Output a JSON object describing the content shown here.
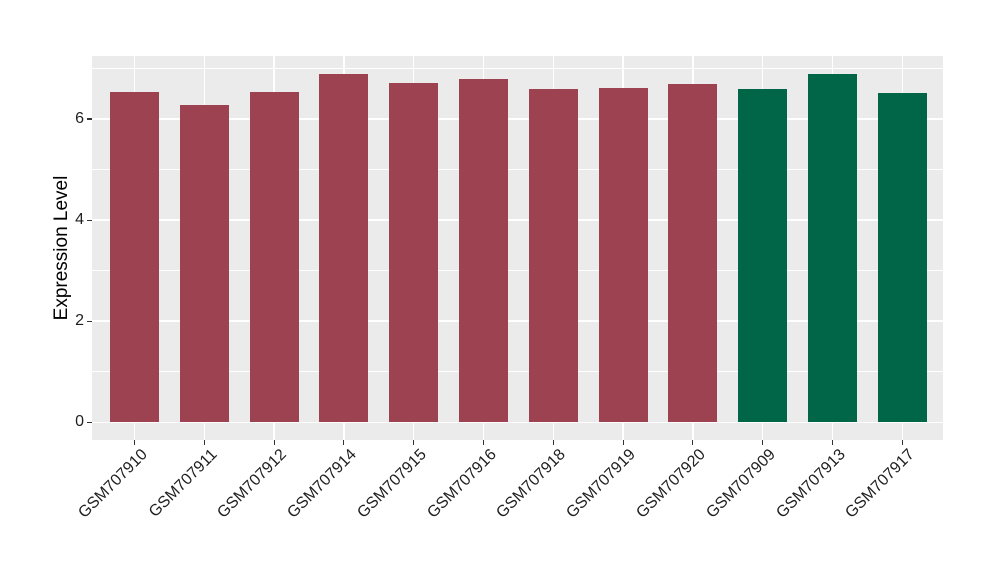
{
  "chart_data": {
    "type": "bar",
    "title": "",
    "xlabel": "",
    "ylabel": "Expression Level",
    "categories": [
      "GSM707910",
      "GSM707911",
      "GSM707912",
      "GSM707914",
      "GSM707915",
      "GSM707916",
      "GSM707918",
      "GSM707919",
      "GSM707920",
      "GSM707909",
      "GSM707913",
      "GSM707917"
    ],
    "values": [
      6.54,
      6.27,
      6.54,
      6.9,
      6.72,
      6.8,
      6.59,
      6.62,
      6.69,
      6.59,
      6.9,
      6.52
    ],
    "bar_colors": [
      "#9C4251",
      "#9C4251",
      "#9C4251",
      "#9C4251",
      "#9C4251",
      "#9C4251",
      "#9C4251",
      "#9C4251",
      "#9C4251",
      "#006647",
      "#006647",
      "#006647"
    ],
    "yticks": [
      0,
      2,
      4,
      6
    ],
    "minor_gridlines": [
      1,
      3,
      5,
      7
    ],
    "ylim": [
      -0.35,
      7.25
    ],
    "legend_position": "none",
    "x_tick_rotation_deg": 45,
    "styling": {
      "panel_background": "#EBEBEB",
      "major_gridline_color": "#FFFFFF",
      "minor_gridline_color": "#FFFFFF",
      "red_group_color": "#9C4251",
      "green_group_color": "#006647",
      "tick_color": "#333333",
      "outer_background": "#FFFFFF"
    }
  }
}
